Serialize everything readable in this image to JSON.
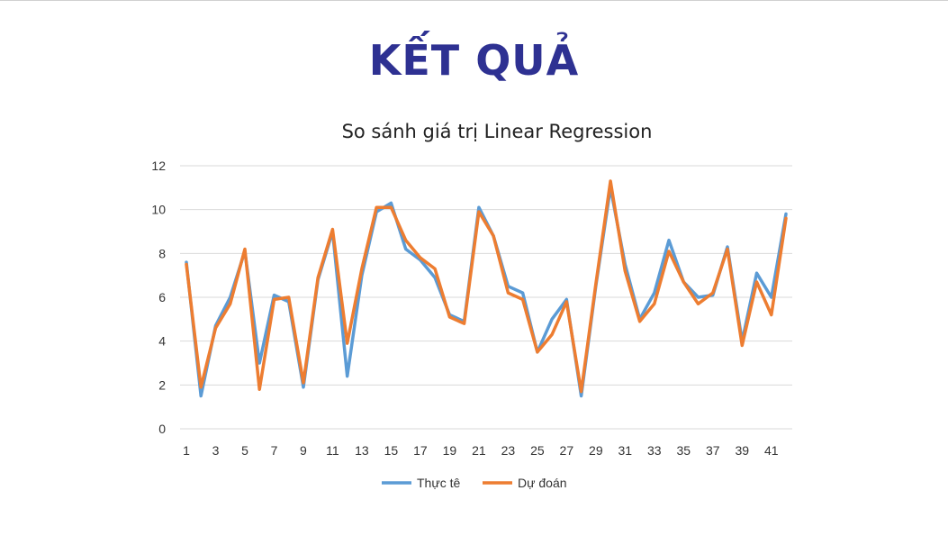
{
  "slide": {
    "title": "KẾT QUẢ"
  },
  "chart_data": {
    "type": "line",
    "title": "So sánh giá trị Linear Regression",
    "xlabel": "",
    "ylabel": "",
    "ylim": [
      0,
      12
    ],
    "yticks": [
      0,
      2,
      4,
      6,
      8,
      10,
      12
    ],
    "xtick_labels": [
      "1",
      "3",
      "5",
      "7",
      "9",
      "11",
      "13",
      "15",
      "17",
      "19",
      "21",
      "23",
      "25",
      "27",
      "29",
      "31",
      "33",
      "35",
      "37",
      "39",
      "41"
    ],
    "grid": "horizontal",
    "legend_position": "bottom",
    "x": [
      1,
      2,
      3,
      4,
      5,
      6,
      7,
      8,
      9,
      10,
      11,
      12,
      13,
      14,
      15,
      16,
      17,
      18,
      19,
      20,
      21,
      22,
      23,
      24,
      25,
      26,
      27,
      28,
      29,
      30,
      31,
      32,
      33,
      34,
      35,
      36,
      37,
      38,
      39,
      40,
      41,
      42
    ],
    "series": [
      {
        "name": "Thực tê",
        "color": "#5b9bd5",
        "values": [
          7.6,
          1.5,
          4.7,
          6.0,
          8.1,
          3.0,
          6.1,
          5.8,
          1.9,
          6.8,
          9.0,
          2.4,
          7.0,
          9.9,
          10.3,
          8.2,
          7.7,
          6.9,
          5.2,
          4.9,
          10.1,
          8.8,
          6.5,
          6.2,
          3.5,
          5.0,
          5.9,
          1.5,
          6.5,
          11.0,
          7.5,
          5.0,
          6.2,
          8.6,
          6.7,
          6.0,
          6.1,
          8.3,
          4.0,
          7.1,
          6.0,
          9.8
        ]
      },
      {
        "name": "Dự đoán",
        "color": "#ed7d31",
        "values": [
          7.5,
          1.9,
          4.6,
          5.7,
          8.2,
          1.8,
          5.9,
          6.0,
          2.1,
          6.9,
          9.1,
          3.9,
          7.3,
          10.1,
          10.1,
          8.6,
          7.8,
          7.3,
          5.1,
          4.8,
          9.9,
          8.8,
          6.2,
          5.9,
          3.5,
          4.3,
          5.8,
          1.7,
          6.6,
          11.3,
          7.2,
          4.9,
          5.7,
          8.1,
          6.7,
          5.7,
          6.2,
          8.2,
          3.8,
          6.7,
          5.2,
          9.6
        ]
      }
    ]
  }
}
